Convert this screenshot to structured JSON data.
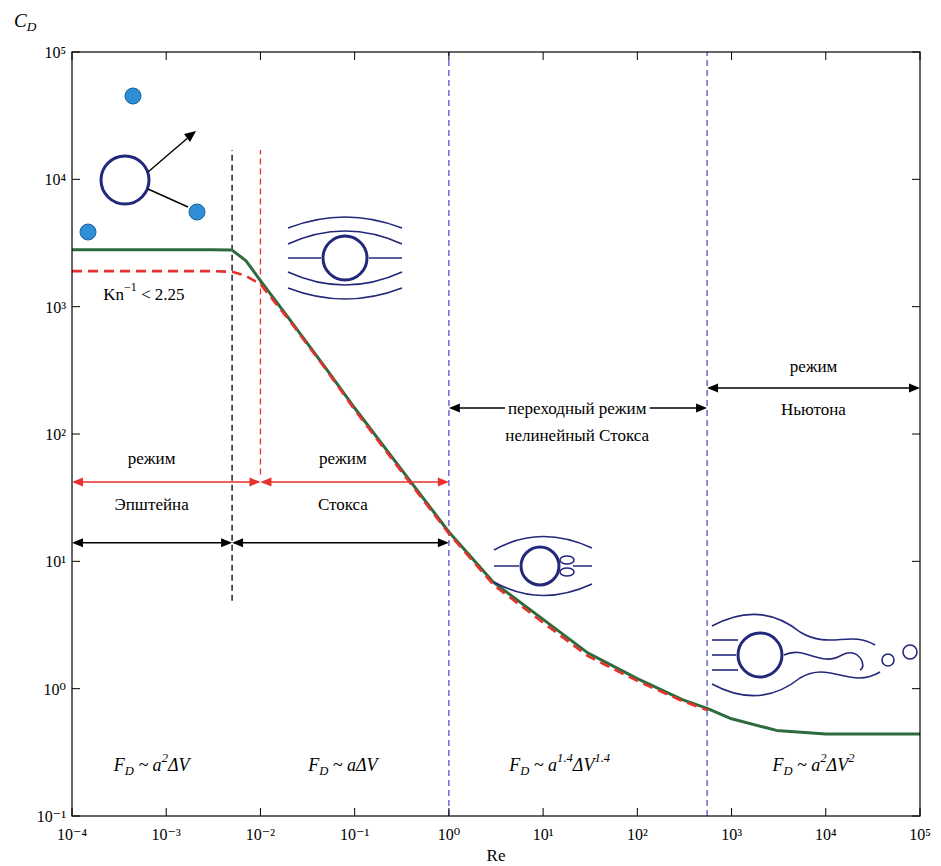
{
  "chart_data": {
    "type": "line",
    "log": true,
    "grid": false,
    "x_label": [
      "Re"
    ],
    "y_label": [
      "C",
      {
        "sub": "D"
      }
    ],
    "xlim": [
      0.0001,
      100000
    ],
    "ylim": [
      0.1,
      100000
    ],
    "xticks": [
      {
        "value": 0.0001,
        "label": "10⁻⁴"
      },
      {
        "value": 0.001,
        "label": "10⁻³"
      },
      {
        "value": 0.01,
        "label": "10⁻²"
      },
      {
        "value": 0.1,
        "label": "10⁻¹"
      },
      {
        "value": 1,
        "label": "10⁰"
      },
      {
        "value": 10,
        "label": "10¹"
      },
      {
        "value": 100,
        "label": "10²"
      },
      {
        "value": 1000,
        "label": "10³"
      },
      {
        "value": 10000,
        "label": "10⁴"
      },
      {
        "value": 100000,
        "label": "10⁵"
      }
    ],
    "yticks": [
      {
        "value": 0.1,
        "label": "10⁻¹"
      },
      {
        "value": 1,
        "label": "10⁰"
      },
      {
        "value": 10,
        "label": "10¹"
      },
      {
        "value": 100,
        "label": "10²"
      },
      {
        "value": 1000,
        "label": "10³"
      },
      {
        "value": 10000,
        "label": "10⁴"
      },
      {
        "value": 100000,
        "label": "10⁵"
      }
    ],
    "x": [
      0.0001,
      0.001,
      0.003,
      0.005,
      0.007,
      0.01,
      0.02,
      0.05,
      0.1,
      0.3,
      1,
      3,
      10,
      30,
      100,
      300,
      550,
      1000,
      3000,
      10000,
      30000,
      100000
    ],
    "series": [
      {
        "color": "#2e6b3c",
        "line_style": "solid",
        "values": [
          2800,
          2800,
          2800,
          2780,
          2300,
          1600,
          810,
          325,
          160,
          55,
          17,
          6.8,
          3.5,
          1.9,
          1.2,
          0.82,
          0.7,
          0.58,
          0.47,
          0.44,
          0.44,
          0.44
        ]
      },
      {
        "color": "#e8312f",
        "line_style": "dashed",
        "values": [
          1900,
          1900,
          1900,
          1880,
          1750,
          1500,
          790,
          318,
          155,
          53,
          16.5,
          6.5,
          3.3,
          1.8,
          1.15,
          0.8,
          0.68,
          null,
          null,
          null,
          null,
          null
        ]
      }
    ],
    "vlines": [
      {
        "x": 0.005,
        "span": [
          4.9,
          17000
        ],
        "color": "#000000"
      },
      {
        "x": 0.01,
        "span": [
          48,
          17000
        ],
        "color": "#e8312f"
      },
      {
        "x": 1,
        "span": [
          0.1,
          100000
        ],
        "color": "#5a4fcf"
      },
      {
        "x": 550,
        "span": [
          0.1,
          100000
        ],
        "color": "#5a4fcf"
      }
    ],
    "ranges": [
      {
        "from": 0.0001,
        "to": 0.01,
        "y": 42,
        "color": "#e8312f"
      },
      {
        "from": 0.01,
        "to": 1,
        "y": 42,
        "color": "#e8312f"
      },
      {
        "from": 0.0001,
        "to": 0.005,
        "y": 14,
        "color": "#000000"
      },
      {
        "from": 0.005,
        "to": 1,
        "y": 14,
        "color": "#000000"
      },
      {
        "from": 1,
        "to": 550,
        "y": 160,
        "color": "#000000"
      },
      {
        "from": 550,
        "to": 100000,
        "y": 230,
        "color": "#000000"
      }
    ],
    "labels": [
      {
        "text": [
          "режим"
        ],
        "x": 0.0007,
        "y": 65
      },
      {
        "text": [
          "Эпштейна"
        ],
        "x": 0.0007,
        "y": 28
      },
      {
        "text": [
          "режим"
        ],
        "x": 0.075,
        "y": 65
      },
      {
        "text": [
          "Стокса"
        ],
        "x": 0.075,
        "y": 28
      },
      {
        "text": [
          "переходный режим"
        ],
        "x": 23,
        "y": 160
      },
      {
        "text": [
          "нелинейный Стокса"
        ],
        "x": 23,
        "y": 98
      },
      {
        "text": [
          "режим"
        ],
        "x": 7400,
        "y": 343
      },
      {
        "text": [
          "Ньютона"
        ],
        "x": 7400,
        "y": 156
      },
      {
        "text": [
          "Kn",
          {
            "sup": "−1"
          },
          " < 2.25"
        ],
        "x": 0.00058,
        "y": 1260
      }
    ],
    "formulas": [
      {
        "text": [
          "F",
          {
            "sub": "D"
          },
          " ~ a",
          {
            "sup": "2"
          },
          "ΔV"
        ],
        "x": 0.0007,
        "y": 0.25
      },
      {
        "text": [
          "F",
          {
            "sub": "D"
          },
          " ~ aΔV"
        ],
        "x": 0.075,
        "y": 0.25
      },
      {
        "text": [
          "F",
          {
            "sub": "D"
          },
          " ~ a",
          {
            "sup": "1.4"
          },
          "ΔV",
          {
            "sup": "1.4"
          }
        ],
        "x": 15,
        "y": 0.25
      },
      {
        "text": [
          "F",
          {
            "sub": "D"
          },
          " ~ a",
          {
            "sup": "2"
          },
          "ΔV",
          {
            "sup": "2"
          }
        ],
        "x": 7400,
        "y": 0.25
      }
    ]
  }
}
